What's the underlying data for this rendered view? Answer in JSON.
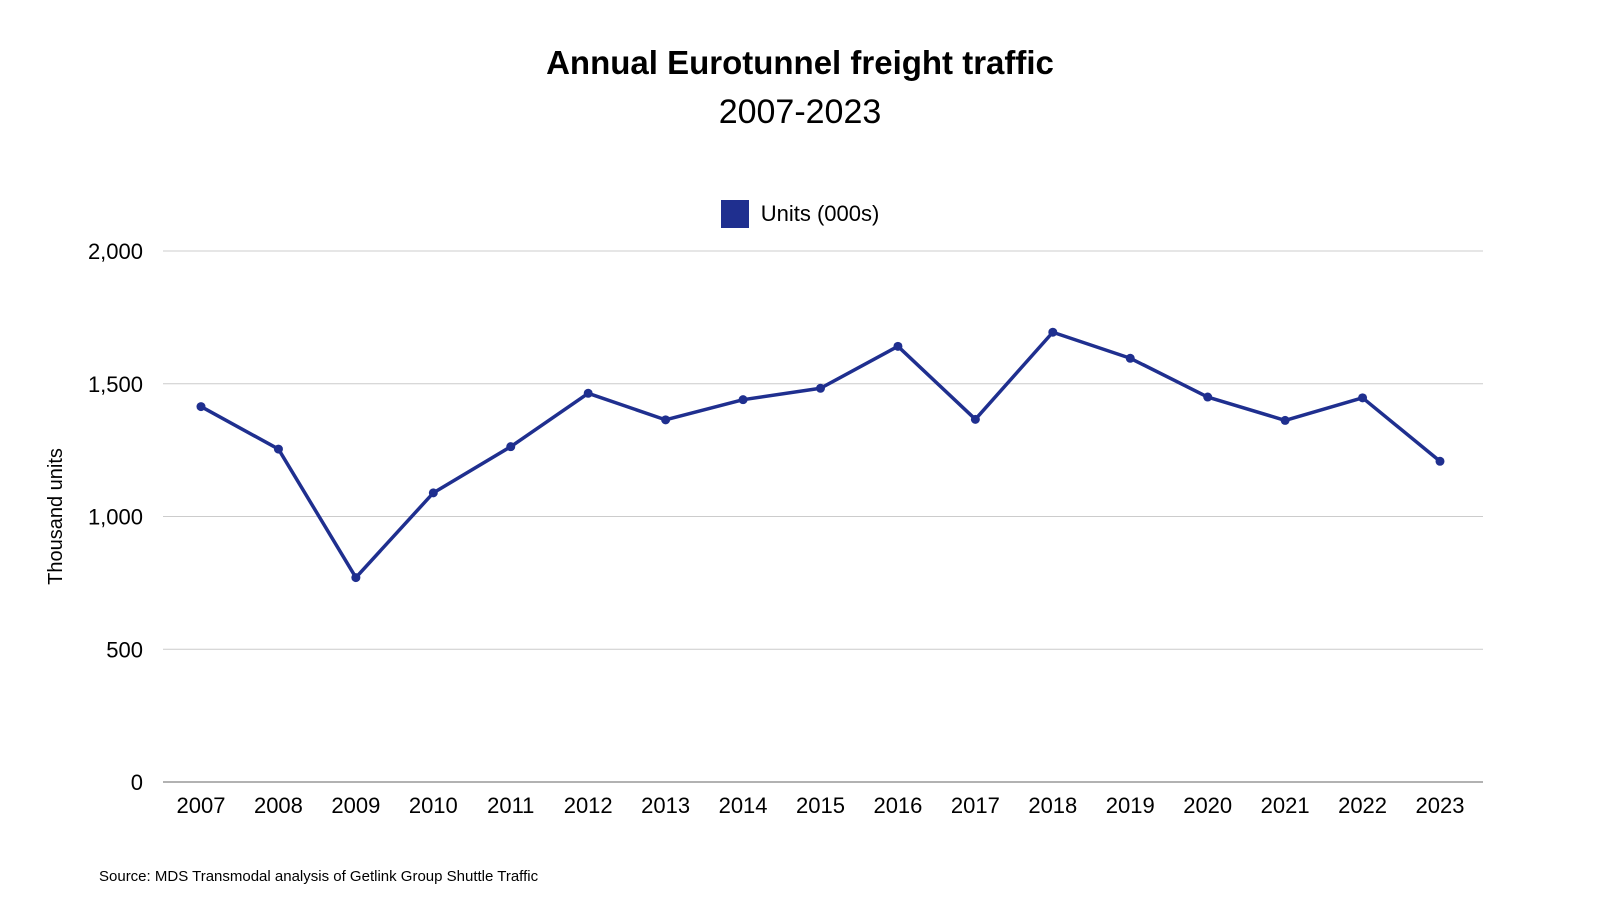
{
  "chart_data": {
    "type": "line",
    "title": "Annual Eurotunnel freight traffic",
    "subtitle": "2007-2023",
    "xlabel": "",
    "ylabel": "Thousand units",
    "ylim": [
      0,
      2000
    ],
    "yticks": [
      0,
      500,
      1000,
      1500,
      2000
    ],
    "ytick_labels": [
      "0",
      "500",
      "1,000",
      "1,500",
      "2,000"
    ],
    "grid": true,
    "legend_position": "top-center",
    "categories": [
      "2007",
      "2008",
      "2009",
      "2010",
      "2011",
      "2012",
      "2013",
      "2014",
      "2015",
      "2016",
      "2017",
      "2018",
      "2019",
      "2020",
      "2021",
      "2022",
      "2023"
    ],
    "series": [
      {
        "name": "Units (000s)",
        "color": "#1f2f8f",
        "values": [
          1414,
          1254,
          770,
          1089,
          1263,
          1464,
          1364,
          1440,
          1483,
          1641,
          1366,
          1694,
          1596,
          1450,
          1362,
          1447,
          1208
        ]
      }
    ],
    "source": "Source: MDS Transmodal analysis of Getlink Group Shuttle Traffic"
  },
  "colors": {
    "line": "#1f2f8f",
    "grid": "#cccccc",
    "axis": "#999999",
    "text": "#000000"
  }
}
